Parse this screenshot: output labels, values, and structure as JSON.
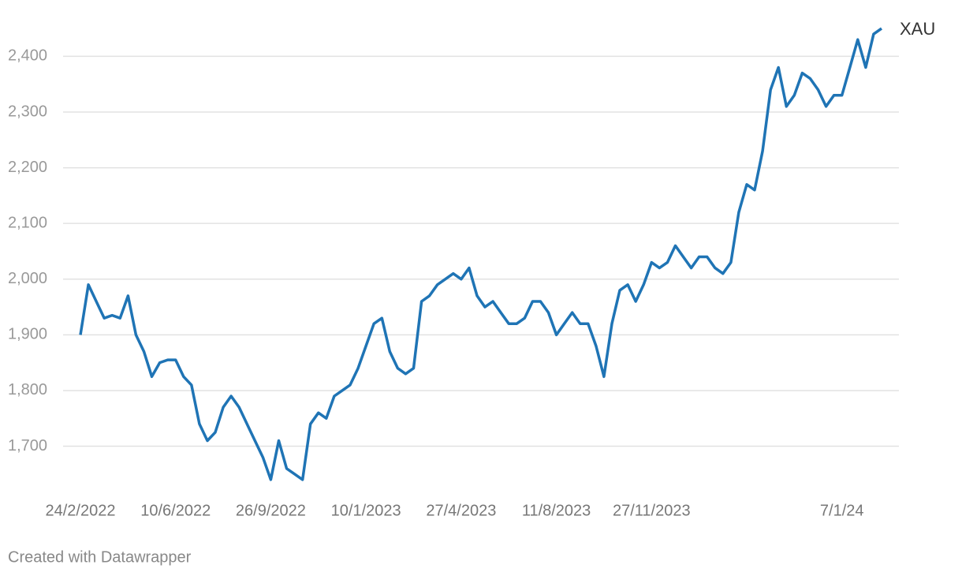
{
  "chart_data": {
    "type": "line",
    "categories": [
      "24/2/2022",
      null,
      null,
      null,
      null,
      null,
      null,
      null,
      null,
      null,
      null,
      null,
      "10/6/2022",
      null,
      null,
      null,
      null,
      null,
      null,
      null,
      null,
      null,
      null,
      null,
      "26/9/2022",
      null,
      null,
      null,
      null,
      null,
      null,
      null,
      null,
      null,
      null,
      null,
      "10/1/2023",
      null,
      null,
      null,
      null,
      null,
      null,
      null,
      null,
      null,
      null,
      null,
      "27/4/2023",
      null,
      null,
      null,
      null,
      null,
      null,
      null,
      null,
      null,
      null,
      null,
      "11/8/2023",
      null,
      null,
      null,
      null,
      null,
      null,
      null,
      null,
      null,
      null,
      null,
      "27/11/2023",
      null,
      null,
      null,
      null,
      null,
      null,
      null,
      null,
      null,
      null,
      null,
      null,
      null,
      null,
      null,
      null,
      null,
      null,
      null,
      null,
      null,
      null,
      null,
      "7/1/24",
      null,
      null,
      null,
      null,
      null
    ],
    "series": [
      {
        "name": "XAU",
        "color": "#1f74b5",
        "values": [
          1900,
          1990,
          1960,
          1930,
          1935,
          1930,
          1970,
          1900,
          1870,
          1825,
          1850,
          1855,
          1855,
          1825,
          1810,
          1740,
          1710,
          1725,
          1770,
          1790,
          1770,
          1740,
          1710,
          1680,
          1640,
          1710,
          1660,
          1650,
          1640,
          1740,
          1760,
          1750,
          1790,
          1800,
          1810,
          1840,
          1880,
          1920,
          1930,
          1870,
          1840,
          1830,
          1840,
          1960,
          1970,
          1990,
          2000,
          2010,
          2000,
          2020,
          1970,
          1950,
          1960,
          1940,
          1920,
          1920,
          1930,
          1960,
          1960,
          1940,
          1900,
          1920,
          1940,
          1920,
          1920,
          1880,
          1825,
          1920,
          1980,
          1990,
          1960,
          1990,
          2030,
          2020,
          2030,
          2060,
          2040,
          2020,
          2040,
          2040,
          2020,
          2010,
          2030,
          2120,
          2170,
          2160,
          2230,
          2340,
          2380,
          2310,
          2330,
          2370,
          2360,
          2340,
          2310,
          2330,
          2330,
          2380,
          2430,
          2380,
          2440,
          2450
        ]
      }
    ],
    "ylim": [
      1620,
      2470
    ],
    "yticks": [
      {
        "value": 1700,
        "label": "1,700"
      },
      {
        "value": 1800,
        "label": "1,800"
      },
      {
        "value": 1900,
        "label": "1,900"
      },
      {
        "value": 2000,
        "label": "2,000"
      },
      {
        "value": 2100,
        "label": "2,100"
      },
      {
        "value": 2200,
        "label": "2,200"
      },
      {
        "value": 2300,
        "label": "2,300"
      },
      {
        "value": 2400,
        "label": "2,400"
      }
    ],
    "grid": true
  },
  "footer": "Created with Datawrapper"
}
